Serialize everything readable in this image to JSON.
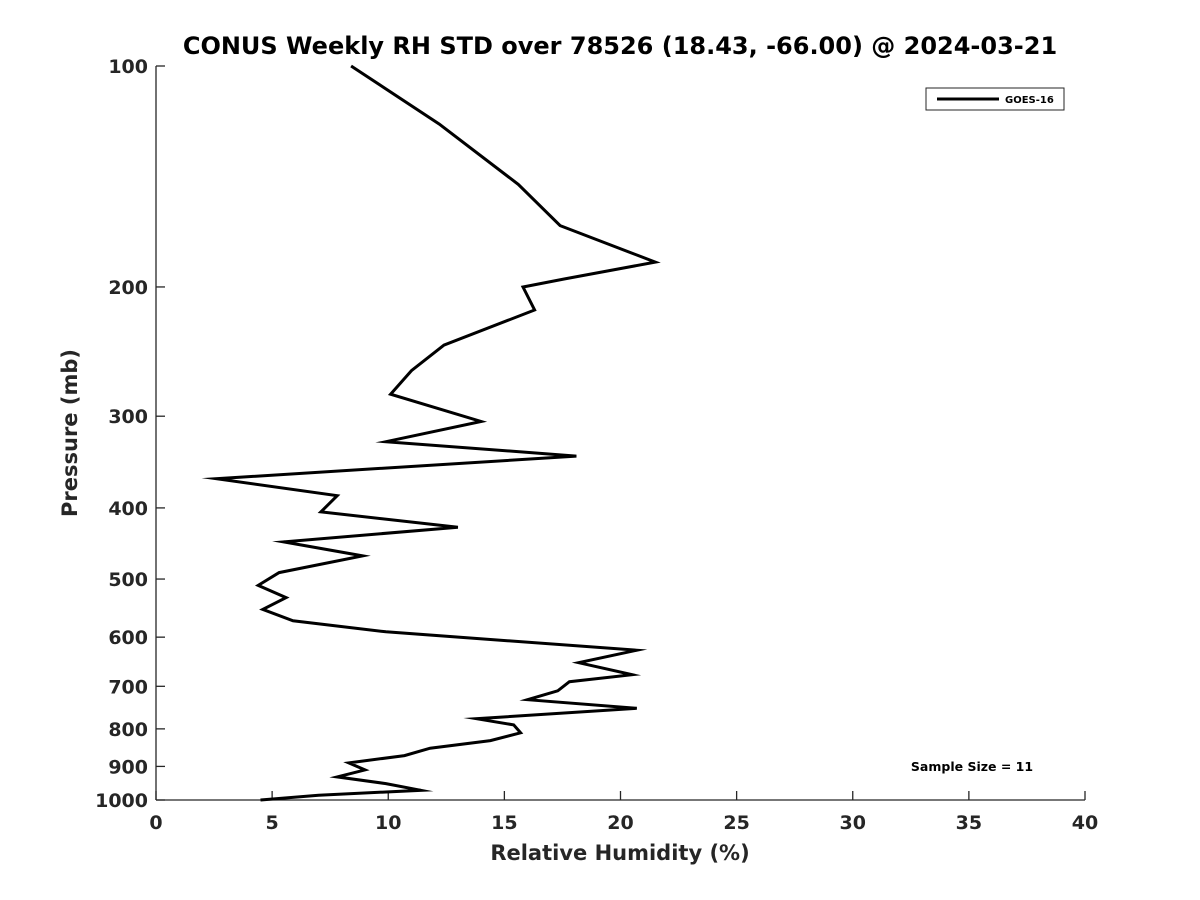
{
  "chart_data": {
    "type": "line",
    "title": "CONUS Weekly RH STD over 78526 (18.43, -66.00) @ 2024-03-21",
    "xlabel": "Relative Humidity (%)",
    "ylabel": "Pressure (mb)",
    "xlim": [
      0,
      40
    ],
    "ylim": [
      100,
      1000
    ],
    "y_scale": "log",
    "y_reversed": true,
    "x_ticks": [
      0,
      5,
      10,
      15,
      20,
      25,
      30,
      35,
      40
    ],
    "x_tick_labels": [
      "0",
      "5",
      "10",
      "15",
      "20",
      "25",
      "30",
      "35",
      "40"
    ],
    "y_ticks": [
      100,
      200,
      300,
      400,
      500,
      600,
      700,
      800,
      900,
      1000
    ],
    "y_tick_labels": [
      "100",
      "200",
      "300",
      "400",
      "500",
      "600",
      "700",
      "800",
      "900",
      "1000"
    ],
    "grid": false,
    "legend_position": "top-right",
    "series": [
      {
        "name": "GOES-16",
        "color": "#000000",
        "x": [
          8.4,
          12.2,
          15.6,
          17.4,
          21.5,
          17.6,
          15.8,
          16.3,
          12.4,
          11.0,
          10.1,
          14.0,
          9.9,
          18.1,
          2.6,
          7.8,
          7.1,
          13.0,
          5.5,
          8.9,
          5.3,
          4.4,
          5.6,
          4.6,
          5.9,
          9.9,
          20.7,
          18.2,
          20.5,
          17.8,
          17.3,
          16.0,
          20.7,
          13.8,
          15.4,
          15.7,
          14.4,
          11.8,
          10.7,
          8.3,
          9.0,
          7.8,
          9.9,
          11.4,
          7.0,
          4.5
        ],
        "y": [
          100,
          120,
          145,
          165,
          185,
          195,
          200,
          215,
          240,
          260,
          280,
          305,
          325,
          340,
          365,
          385,
          405,
          425,
          445,
          465,
          490,
          510,
          530,
          550,
          570,
          590,
          625,
          650,
          675,
          690,
          710,
          730,
          750,
          775,
          790,
          810,
          830,
          850,
          870,
          890,
          910,
          930,
          950,
          970,
          985,
          1000
        ]
      }
    ],
    "legend": [
      "GOES-16"
    ],
    "annotations": [
      "Sample Size = 11"
    ]
  }
}
